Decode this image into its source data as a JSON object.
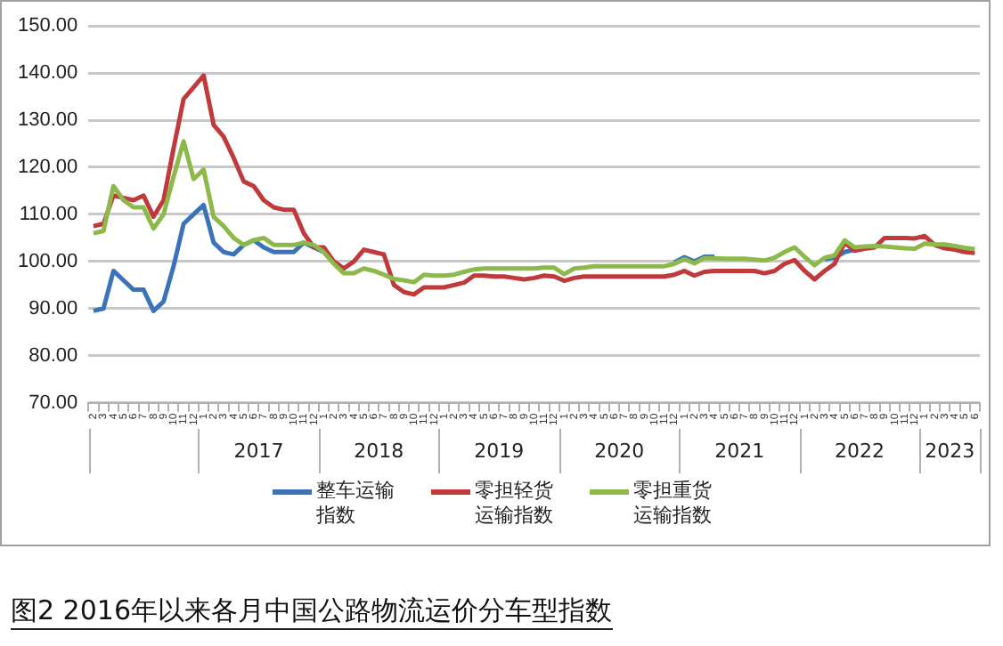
{
  "chart_data": {
    "type": "line",
    "title": "图2 2016年以来各月中国公路物流运价分车型指数",
    "categories": [
      "2",
      "3",
      "4",
      "5",
      "6",
      "7",
      "8",
      "9",
      "10",
      "11",
      "12",
      "1",
      "2",
      "3",
      "4",
      "5",
      "6",
      "7",
      "8",
      "9",
      "10",
      "11",
      "12",
      "1",
      "2",
      "3",
      "4",
      "5",
      "6",
      "7",
      "8",
      "9",
      "10",
      "11",
      "12",
      "1",
      "2",
      "3",
      "4",
      "5",
      "6",
      "7",
      "8",
      "9",
      "10",
      "11",
      "12",
      "1",
      "2",
      "3",
      "4",
      "5",
      "6",
      "7",
      "8",
      "9",
      "10",
      "11",
      "12",
      "1",
      "2",
      "3",
      "4",
      "5",
      "6",
      "7",
      "8",
      "9",
      "10",
      "11",
      "12",
      "1",
      "2",
      "3",
      "4",
      "5",
      "6",
      "7",
      "8",
      "9",
      "10",
      "11",
      "12",
      "1",
      "2",
      "3",
      "4",
      "5",
      "6"
    ],
    "series": [
      {
        "name": "整车运输指数",
        "color": "#3a73b8",
        "values": [
          89.5,
          90,
          98,
          96,
          94,
          94,
          89.5,
          91.5,
          99,
          108,
          110,
          112,
          104,
          102,
          101.5,
          103.5,
          104.5,
          103,
          102,
          102,
          102,
          104,
          103,
          102,
          null,
          null,
          null,
          null,
          null,
          null,
          null,
          null,
          null,
          null,
          null,
          null,
          null,
          null,
          null,
          null,
          null,
          null,
          null,
          null,
          null,
          null,
          null,
          null,
          null,
          null,
          null,
          null,
          null,
          null,
          null,
          null,
          null,
          null,
          99.8,
          100.9,
          100,
          101,
          101,
          null,
          null,
          null,
          null,
          null,
          null,
          null,
          null,
          null,
          null,
          100.5,
          100.8,
          102,
          102.5,
          null,
          null,
          null,
          null,
          null,
          null,
          null,
          null,
          null,
          null,
          null,
          null
        ]
      },
      {
        "name": "零担轻货运输指数",
        "color": "#c0393b",
        "values": [
          107.5,
          108,
          114,
          113.5,
          113,
          114,
          109.5,
          113,
          124,
          134.5,
          137,
          139.5,
          129,
          126.5,
          122,
          117,
          116,
          113,
          111.5,
          111,
          111,
          106,
          103,
          103,
          100,
          98.5,
          100,
          102.5,
          102,
          101.5,
          95,
          93.5,
          93,
          94.5,
          94.5,
          94.5,
          95,
          95.5,
          97,
          97,
          96.8,
          96.8,
          96.5,
          96.2,
          96.5,
          97,
          96.8,
          95.9,
          96.5,
          96.8,
          96.8,
          96.8,
          96.8,
          96.8,
          96.8,
          96.8,
          96.8,
          96.8,
          97.2,
          98,
          97,
          97.8,
          98,
          98,
          98,
          98,
          98,
          97.5,
          98,
          99.5,
          100.3,
          98,
          96.2,
          98,
          99.5,
          104,
          102.3,
          102.7,
          103,
          105,
          105,
          105,
          104.9,
          105.4,
          103.5,
          102.8,
          102.5,
          102,
          101.8
        ]
      },
      {
        "name": "零担重货运输指数",
        "color": "#8cb94a",
        "values": [
          106,
          106.5,
          116,
          113,
          111.5,
          111.5,
          107,
          110,
          118,
          125.5,
          117.5,
          119.5,
          109.5,
          107.5,
          105,
          103.5,
          104.5,
          105,
          103.5,
          103.5,
          103.5,
          104,
          103.5,
          102,
          99.5,
          97.5,
          97.5,
          98.5,
          98,
          97.2,
          96.3,
          96,
          95.6,
          97.2,
          97,
          97,
          97.2,
          97.8,
          98.3,
          98.5,
          98.5,
          98.5,
          98.5,
          98.5,
          98.5,
          98.7,
          98.7,
          97.3,
          98.5,
          98.7,
          99,
          99,
          99,
          99,
          99,
          99,
          99,
          99,
          99.5,
          100.5,
          99.6,
          100.7,
          100.7,
          100.6,
          100.6,
          100.6,
          100.4,
          100.2,
          100.8,
          102,
          103,
          101,
          99.2,
          100.8,
          101.3,
          104.5,
          103,
          103.2,
          103.3,
          103.2,
          103,
          102.8,
          102.7,
          103.8,
          103.6,
          103.6,
          103.3,
          102.9,
          102.6
        ]
      }
    ],
    "ylim": [
      70,
      150
    ],
    "yticks": [
      {
        "value": 70,
        "label": "70.00"
      },
      {
        "value": 80,
        "label": "80.00"
      },
      {
        "value": 90,
        "label": "90.00"
      },
      {
        "value": 100,
        "label": "100.00"
      },
      {
        "value": 110,
        "label": "110.00"
      },
      {
        "value": 120,
        "label": "120.00"
      },
      {
        "value": 130,
        "label": "130.00"
      },
      {
        "value": 140,
        "label": "140.00"
      },
      {
        "value": 150,
        "label": "150.00"
      }
    ],
    "annotations": [
      "2017",
      "2018",
      "2019",
      "2020",
      "2021",
      "2022",
      "2023"
    ],
    "grid": "y",
    "legend": "bottom"
  }
}
